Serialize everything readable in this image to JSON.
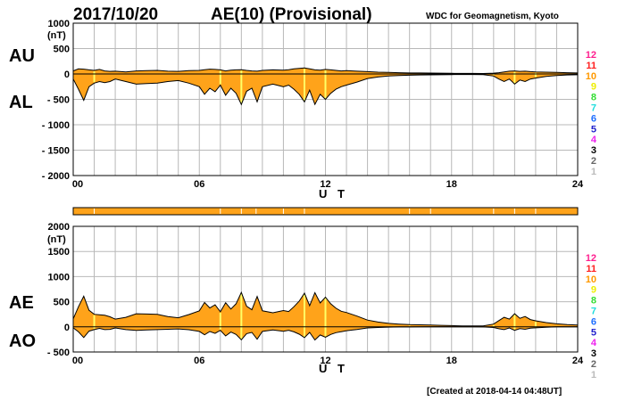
{
  "header": {
    "date": "2017/10/20",
    "index_title": "AE(10) (Provisional)",
    "organization": "WDC for Geomagnetism, Kyoto"
  },
  "footer": {
    "created": "[Created at 2018-04-14 04:48UT]"
  },
  "colors": {
    "fill": "#ffa31a",
    "line": "#000000",
    "highlight": "#ffff66",
    "grid": "#b8b8b8"
  },
  "station_key": [
    {
      "label": "12",
      "color": "#ff1f8f"
    },
    {
      "label": "11",
      "color": "#ff1f1f"
    },
    {
      "label": "10",
      "color": "#ff9900"
    },
    {
      "label": "9",
      "color": "#eeee00"
    },
    {
      "label": "8",
      "color": "#33dd33"
    },
    {
      "label": "7",
      "color": "#22dddd"
    },
    {
      "label": "6",
      "color": "#1f6fff"
    },
    {
      "label": "5",
      "color": "#2222cc"
    },
    {
      "label": "4",
      "color": "#ee22ee"
    },
    {
      "label": "3",
      "color": "#000000"
    },
    {
      "label": "2",
      "color": "#666666"
    },
    {
      "label": "1",
      "color": "#bbbbbb"
    }
  ],
  "station_bar": {
    "color": "#ffa31a",
    "gap_hours": [
      1.0,
      7.0,
      8.0,
      8.7,
      10.0,
      11.0,
      16.0,
      17.0,
      20.0,
      21.0,
      22.0
    ]
  },
  "chart_data": [
    {
      "type": "area",
      "panel": "upper",
      "ylabel": "(nT)",
      "xlabel": "U T",
      "upper_label": "AU",
      "lower_label": "AL",
      "xlim": [
        0,
        24
      ],
      "ylim": [
        -2000,
        1000
      ],
      "xticks": [
        0,
        6,
        12,
        18,
        24
      ],
      "xtick_labels": [
        "00",
        "06",
        "12",
        "18",
        "24"
      ],
      "yticks": [
        1000,
        500,
        0,
        -500,
        -1000,
        -1500,
        -2000
      ],
      "ytick_labels": [
        "1000",
        "500",
        "0",
        "- 500",
        "- 1000",
        "- 1500",
        "- 2000"
      ],
      "highlight_hours": [
        1.0,
        7.0,
        8.0,
        11.0,
        12.0,
        16.0,
        17.0,
        20.0,
        21.0,
        22.0
      ],
      "series": [
        {
          "name": "AU",
          "x": [
            0,
            0.25,
            0.5,
            0.75,
            1,
            1.25,
            1.5,
            1.75,
            2,
            2.5,
            3,
            3.5,
            4,
            4.5,
            5,
            5.5,
            6,
            6.25,
            6.5,
            6.75,
            7,
            7.25,
            7.5,
            7.75,
            8,
            8.25,
            8.5,
            8.75,
            9,
            9.5,
            10,
            10.25,
            10.5,
            10.75,
            11,
            11.25,
            11.5,
            11.75,
            12,
            12.25,
            12.5,
            12.75,
            13,
            13.5,
            14,
            14.5,
            15,
            15.5,
            16,
            16.5,
            17,
            17.5,
            18,
            18.5,
            19,
            19.5,
            20,
            20.25,
            20.5,
            20.75,
            21,
            21.25,
            21.5,
            21.75,
            22,
            22.5,
            23,
            23.5,
            24
          ],
          "values": [
            60,
            100,
            95,
            80,
            70,
            90,
            60,
            50,
            55,
            40,
            60,
            65,
            70,
            55,
            50,
            65,
            70,
            85,
            95,
            90,
            80,
            60,
            75,
            80,
            85,
            70,
            60,
            55,
            70,
            80,
            75,
            85,
            100,
            110,
            120,
            100,
            80,
            75,
            90,
            80,
            70,
            60,
            65,
            55,
            45,
            35,
            30,
            25,
            20,
            20,
            18,
            15,
            12,
            10,
            10,
            8,
            15,
            25,
            40,
            55,
            60,
            50,
            55,
            45,
            40,
            35,
            30,
            25,
            20
          ]
        },
        {
          "name": "AL",
          "x": [
            0,
            0.25,
            0.5,
            0.75,
            1,
            1.25,
            1.5,
            1.75,
            2,
            2.5,
            3,
            3.5,
            4,
            4.5,
            5,
            5.5,
            6,
            6.25,
            6.5,
            6.75,
            7,
            7.25,
            7.5,
            7.75,
            8,
            8.25,
            8.5,
            8.75,
            9,
            9.5,
            10,
            10.25,
            10.5,
            10.75,
            11,
            11.25,
            11.5,
            11.75,
            12,
            12.25,
            12.5,
            12.75,
            13,
            13.5,
            14,
            14.5,
            15,
            15.5,
            16,
            16.5,
            17,
            17.5,
            18,
            18.5,
            19,
            19.5,
            20,
            20.25,
            20.5,
            20.75,
            21,
            21.25,
            21.5,
            21.75,
            22,
            22.5,
            23,
            23.5,
            24
          ],
          "values": [
            -100,
            -300,
            -520,
            -250,
            -180,
            -150,
            -170,
            -150,
            -100,
            -150,
            -200,
            -190,
            -180,
            -150,
            -130,
            -180,
            -250,
            -400,
            -280,
            -350,
            -220,
            -420,
            -280,
            -380,
            -600,
            -340,
            -280,
            -550,
            -250,
            -200,
            -250,
            -220,
            -300,
            -400,
            -550,
            -320,
            -600,
            -400,
            -500,
            -380,
            -300,
            -250,
            -220,
            -160,
            -90,
            -60,
            -40,
            -30,
            -25,
            -20,
            -18,
            -15,
            -12,
            -10,
            -10,
            -12,
            -40,
            -100,
            -150,
            -100,
            -200,
            -120,
            -150,
            -100,
            -80,
            -50,
            -30,
            -20,
            -15
          ]
        }
      ]
    },
    {
      "type": "area",
      "panel": "lower",
      "ylabel": "(nT)",
      "xlabel": "U T",
      "upper_label": "AE",
      "lower_label": "AO",
      "xlim": [
        0,
        24
      ],
      "ylim": [
        -500,
        2000
      ],
      "xticks": [
        0,
        6,
        12,
        18,
        24
      ],
      "xtick_labels": [
        "00",
        "06",
        "12",
        "18",
        "24"
      ],
      "yticks": [
        2000,
        1500,
        1000,
        500,
        0,
        -500
      ],
      "ytick_labels": [
        "2000",
        "1500",
        "1000",
        "500",
        "0",
        "- 500"
      ],
      "highlight_hours": [
        1.0,
        7.0,
        8.0,
        11.0,
        12.0,
        16.0,
        17.0,
        20.0,
        21.0,
        22.0
      ],
      "series": [
        {
          "name": "AE",
          "x": [
            0,
            0.25,
            0.5,
            0.75,
            1,
            1.25,
            1.5,
            1.75,
            2,
            2.5,
            3,
            3.5,
            4,
            4.5,
            5,
            5.5,
            6,
            6.25,
            6.5,
            6.75,
            7,
            7.25,
            7.5,
            7.75,
            8,
            8.25,
            8.5,
            8.75,
            9,
            9.5,
            10,
            10.25,
            10.5,
            10.75,
            11,
            11.25,
            11.5,
            11.75,
            12,
            12.25,
            12.5,
            12.75,
            13,
            13.5,
            14,
            14.5,
            15,
            15.5,
            16,
            16.5,
            17,
            17.5,
            18,
            18.5,
            19,
            19.5,
            20,
            20.25,
            20.5,
            20.75,
            21,
            21.25,
            21.5,
            21.75,
            22,
            22.5,
            23,
            23.5,
            24
          ],
          "values": [
            160,
            400,
            610,
            330,
            250,
            240,
            230,
            200,
            155,
            190,
            260,
            255,
            250,
            205,
            180,
            245,
            320,
            485,
            375,
            440,
            300,
            480,
            355,
            460,
            685,
            410,
            340,
            605,
            320,
            280,
            325,
            305,
            400,
            510,
            670,
            420,
            680,
            475,
            590,
            460,
            370,
            310,
            285,
            215,
            135,
            95,
            70,
            55,
            45,
            40,
            36,
            30,
            24,
            20,
            20,
            20,
            55,
            125,
            190,
            155,
            260,
            170,
            205,
            145,
            120,
            85,
            60,
            45,
            35
          ]
        },
        {
          "name": "AO",
          "x": [
            0,
            0.25,
            0.5,
            0.75,
            1,
            1.25,
            1.5,
            1.75,
            2,
            2.5,
            3,
            3.5,
            4,
            4.5,
            5,
            5.5,
            6,
            6.25,
            6.5,
            6.75,
            7,
            7.25,
            7.5,
            7.75,
            8,
            8.25,
            8.5,
            8.75,
            9,
            9.5,
            10,
            10.25,
            10.5,
            10.75,
            11,
            11.25,
            11.5,
            11.75,
            12,
            12.25,
            12.5,
            12.75,
            13,
            13.5,
            14,
            14.5,
            15,
            15.5,
            16,
            16.5,
            17,
            17.5,
            18,
            18.5,
            19,
            19.5,
            20,
            20.25,
            20.5,
            20.75,
            21,
            21.25,
            21.5,
            21.75,
            22,
            22.5,
            23,
            23.5,
            24
          ],
          "values": [
            -20,
            -100,
            -212,
            -85,
            -55,
            -30,
            -55,
            -50,
            -22,
            -55,
            -70,
            -62,
            -55,
            -47,
            -40,
            -57,
            -90,
            -157,
            -92,
            -130,
            -70,
            -180,
            -102,
            -150,
            -257,
            -135,
            -110,
            -247,
            -90,
            -60,
            -87,
            -67,
            -100,
            -145,
            -215,
            -110,
            -260,
            -162,
            -205,
            -150,
            -115,
            -95,
            -77,
            -52,
            -22,
            -12,
            -5,
            -2,
            -2,
            0,
            0,
            0,
            0,
            0,
            0,
            -2,
            -12,
            -37,
            -55,
            -22,
            -70,
            -35,
            -47,
            -27,
            -20,
            -7,
            0,
            2,
            2
          ]
        }
      ]
    }
  ]
}
